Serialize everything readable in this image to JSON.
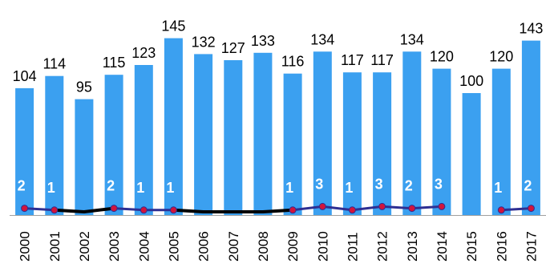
{
  "chart_data": {
    "type": "bar",
    "title": "",
    "xlabel": "",
    "ylabel": "",
    "categories": [
      "2000",
      "2001",
      "2002",
      "2003",
      "2004",
      "2005",
      "2006",
      "2007",
      "2008",
      "2009",
      "2010",
      "2011",
      "2012",
      "2013",
      "2014",
      "2015",
      "2016",
      "2017"
    ],
    "series": [
      {
        "values": [
          104,
          114,
          95,
          115,
          123,
          145,
          132,
          127,
          133,
          116,
          134,
          117,
          117,
          134,
          120,
          100,
          120,
          143
        ],
        "labels": [
          "104",
          "114",
          "95",
          "115",
          "123",
          "145",
          "132",
          "127",
          "133",
          "116",
          "134",
          "117",
          "117",
          "134",
          "120",
          "100",
          "120",
          "143"
        ]
      },
      {
        "type": "line",
        "values": [
          2,
          1,
          0,
          2,
          1,
          1,
          0,
          0,
          0,
          1,
          3,
          1,
          3,
          2,
          3,
          null,
          1,
          2
        ],
        "labels": [
          "2",
          "1",
          "",
          "2",
          "1",
          "1",
          "",
          "",
          "",
          "1",
          "3",
          "1",
          "3",
          "2",
          "3",
          "",
          "1",
          "2"
        ]
      }
    ],
    "colors": {
      "bar": "#3ba0f0",
      "line": "#2e2f92",
      "marker": "#d2143c",
      "line_label": "#ffffff",
      "zero_segment": "#000000",
      "axis": "#a0a0a0"
    },
    "legend": "none",
    "grid": false
  }
}
